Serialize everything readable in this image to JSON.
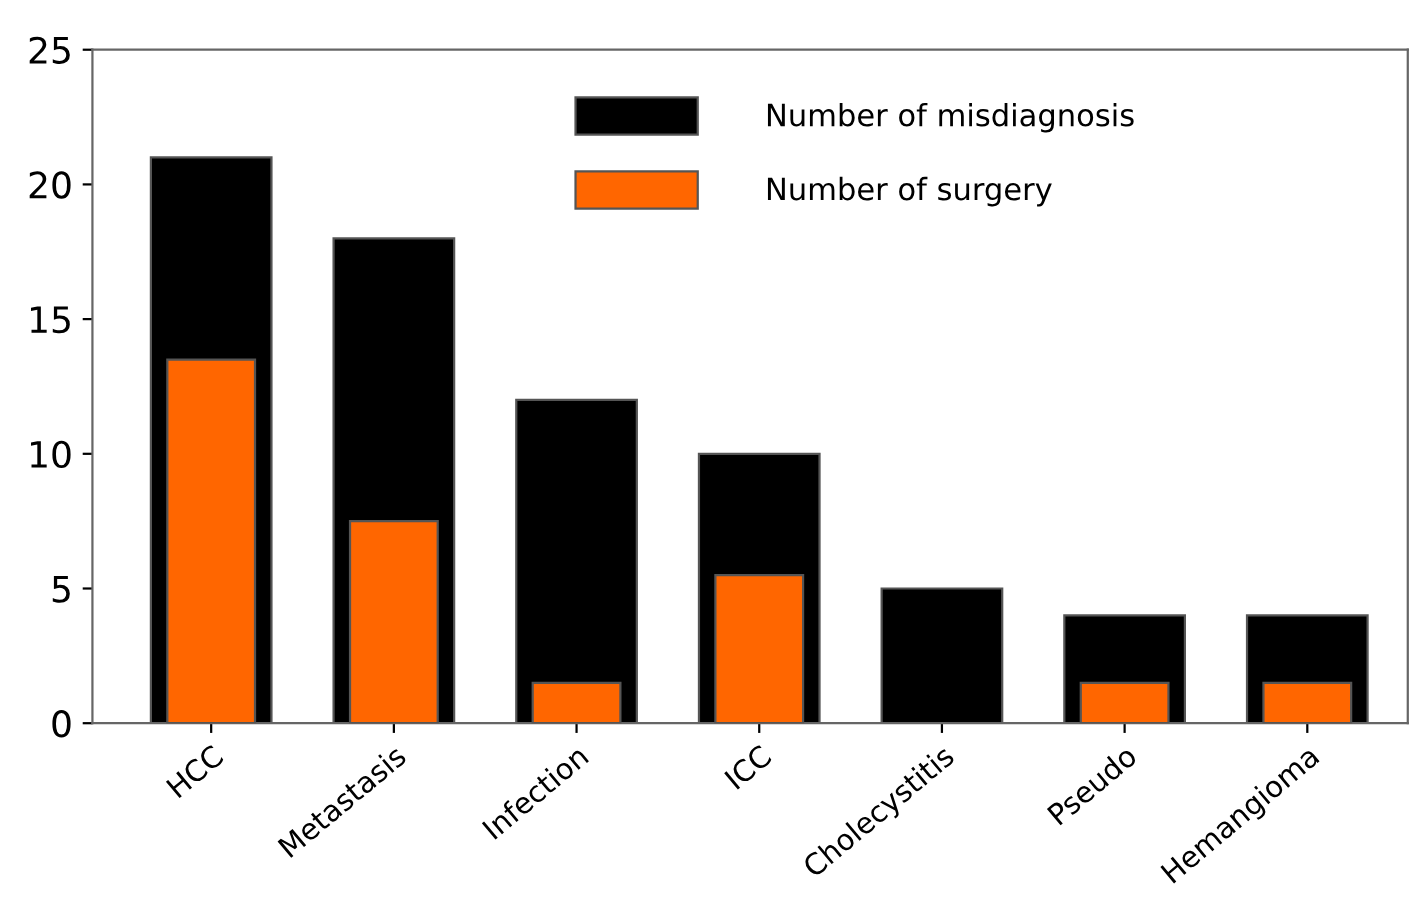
{
  "chart_data": {
    "type": "bar",
    "categories": [
      "HCC",
      "Metastasis",
      "Infection",
      "ICC",
      "Cholecystitis",
      "Pseudo",
      "Hemangioma"
    ],
    "series": [
      {
        "name": "Number of misdiagnosis",
        "color": "#000000",
        "values": [
          21,
          18,
          12,
          10,
          5,
          4,
          4
        ]
      },
      {
        "name": "Number of surgery",
        "color": "#ff6600",
        "values": [
          13.5,
          7.5,
          1.5,
          5.5,
          0,
          1.5,
          1.5
        ]
      }
    ],
    "ylim": [
      0,
      25
    ],
    "yticks": [
      0,
      5,
      10,
      15,
      20,
      25
    ],
    "grid": false,
    "legend": "top"
  }
}
